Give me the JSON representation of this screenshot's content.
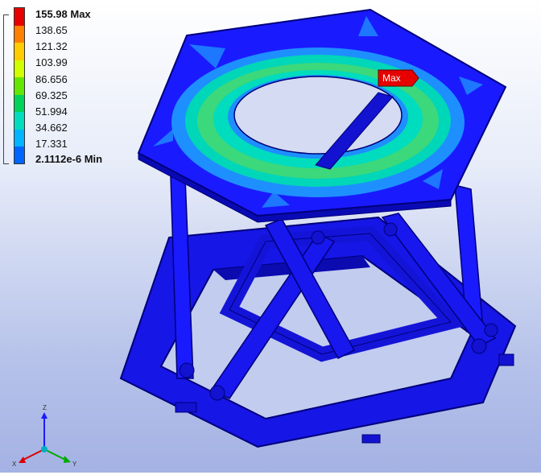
{
  "legend": {
    "entries": [
      {
        "label": "155.98 Max",
        "color": "#e60000",
        "bold": true
      },
      {
        "label": "138.65",
        "color": "#ff8000",
        "bold": false
      },
      {
        "label": "121.32",
        "color": "#ffcc00",
        "bold": false
      },
      {
        "label": "103.99",
        "color": "#d2ff00",
        "bold": false
      },
      {
        "label": "86.656",
        "color": "#64e600",
        "bold": false
      },
      {
        "label": "69.325",
        "color": "#00d25a",
        "bold": false
      },
      {
        "label": "51.994",
        "color": "#00dcbe",
        "bold": false
      },
      {
        "label": "34.662",
        "color": "#00b4ff",
        "bold": false
      },
      {
        "label": "17.331",
        "color": "#0064ff",
        "bold": false
      },
      {
        "label": "2.1112e-6 Min",
        "color": "#0000ff",
        "bold": true
      }
    ]
  },
  "max_probe": {
    "label": "Max",
    "color": "#e60000"
  },
  "triad": {
    "x_label": "X",
    "y_label": "Y",
    "z_label": "Z"
  },
  "colors": {
    "structure": "#1a1aff",
    "structure_dark": "#0a0ab4",
    "plate_outline": "#000080"
  }
}
